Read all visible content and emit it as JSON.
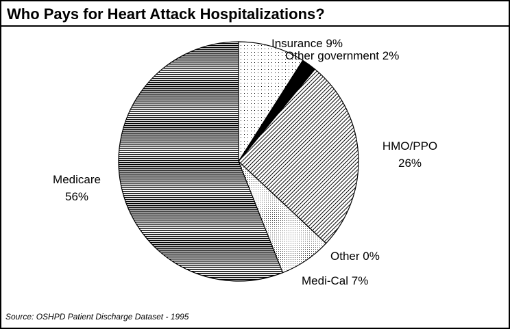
{
  "chart_data": {
    "type": "pie",
    "title": "Who Pays for Heart Attack Hospitalizations?",
    "source": "Source: OSHPD Patient Discharge Dataset - 1995",
    "categories": [
      "Insurance",
      "Other government",
      "HMO/PPO",
      "Other",
      "Medi-Cal",
      "Medicare"
    ],
    "values": [
      9,
      2,
      26,
      0,
      7,
      56
    ],
    "value_labels": [
      "9%",
      "2%",
      "26%",
      "0%",
      "7%",
      "56%"
    ]
  }
}
